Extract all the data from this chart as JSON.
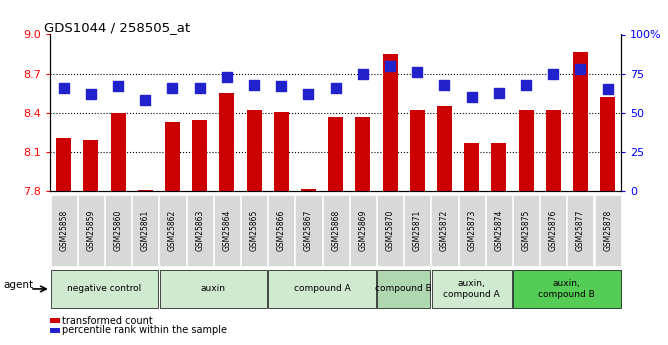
{
  "title": "GDS1044 / 258505_at",
  "samples": [
    "GSM25858",
    "GSM25859",
    "GSM25860",
    "GSM25861",
    "GSM25862",
    "GSM25863",
    "GSM25864",
    "GSM25865",
    "GSM25866",
    "GSM25867",
    "GSM25868",
    "GSM25869",
    "GSM25870",
    "GSM25871",
    "GSM25872",
    "GSM25873",
    "GSM25874",
    "GSM25875",
    "GSM25876",
    "GSM25877",
    "GSM25878"
  ],
  "bar_values": [
    8.21,
    8.19,
    8.4,
    7.81,
    8.33,
    8.35,
    8.55,
    8.42,
    8.41,
    7.82,
    8.37,
    8.37,
    8.85,
    8.42,
    8.45,
    8.17,
    8.17,
    8.42,
    8.42,
    8.87,
    8.52
  ],
  "dot_values": [
    66,
    62,
    67,
    58,
    66,
    66,
    73,
    68,
    67,
    62,
    66,
    75,
    80,
    76,
    68,
    60,
    63,
    68,
    75,
    78,
    65
  ],
  "bar_color": "#cc0000",
  "dot_color": "#2222cc",
  "ylim_left": [
    7.8,
    9.0
  ],
  "ylim_right": [
    0,
    100
  ],
  "yticks_left": [
    7.8,
    8.1,
    8.4,
    8.7,
    9.0
  ],
  "yticks_right": [
    0,
    25,
    50,
    75,
    100
  ],
  "gridlines": [
    8.1,
    8.4,
    8.7
  ],
  "groups": [
    {
      "label": "negative control",
      "start": 0,
      "end": 3,
      "color": "#d0ead0"
    },
    {
      "label": "auxin",
      "start": 4,
      "end": 7,
      "color": "#d0ead0"
    },
    {
      "label": "compound A",
      "start": 8,
      "end": 11,
      "color": "#d0ead0"
    },
    {
      "label": "compound B",
      "start": 12,
      "end": 13,
      "color": "#b0d8b0"
    },
    {
      "label": "auxin,\ncompound A",
      "start": 14,
      "end": 16,
      "color": "#d0ead0"
    },
    {
      "label": "auxin,\ncompound B",
      "start": 17,
      "end": 20,
      "color": "#55cc55"
    }
  ],
  "legend_bar_label": "transformed count",
  "legend_dot_label": "percentile rank within the sample",
  "bar_width": 0.55,
  "dot_size": 55,
  "tick_label_bg": "#d8d8d8"
}
